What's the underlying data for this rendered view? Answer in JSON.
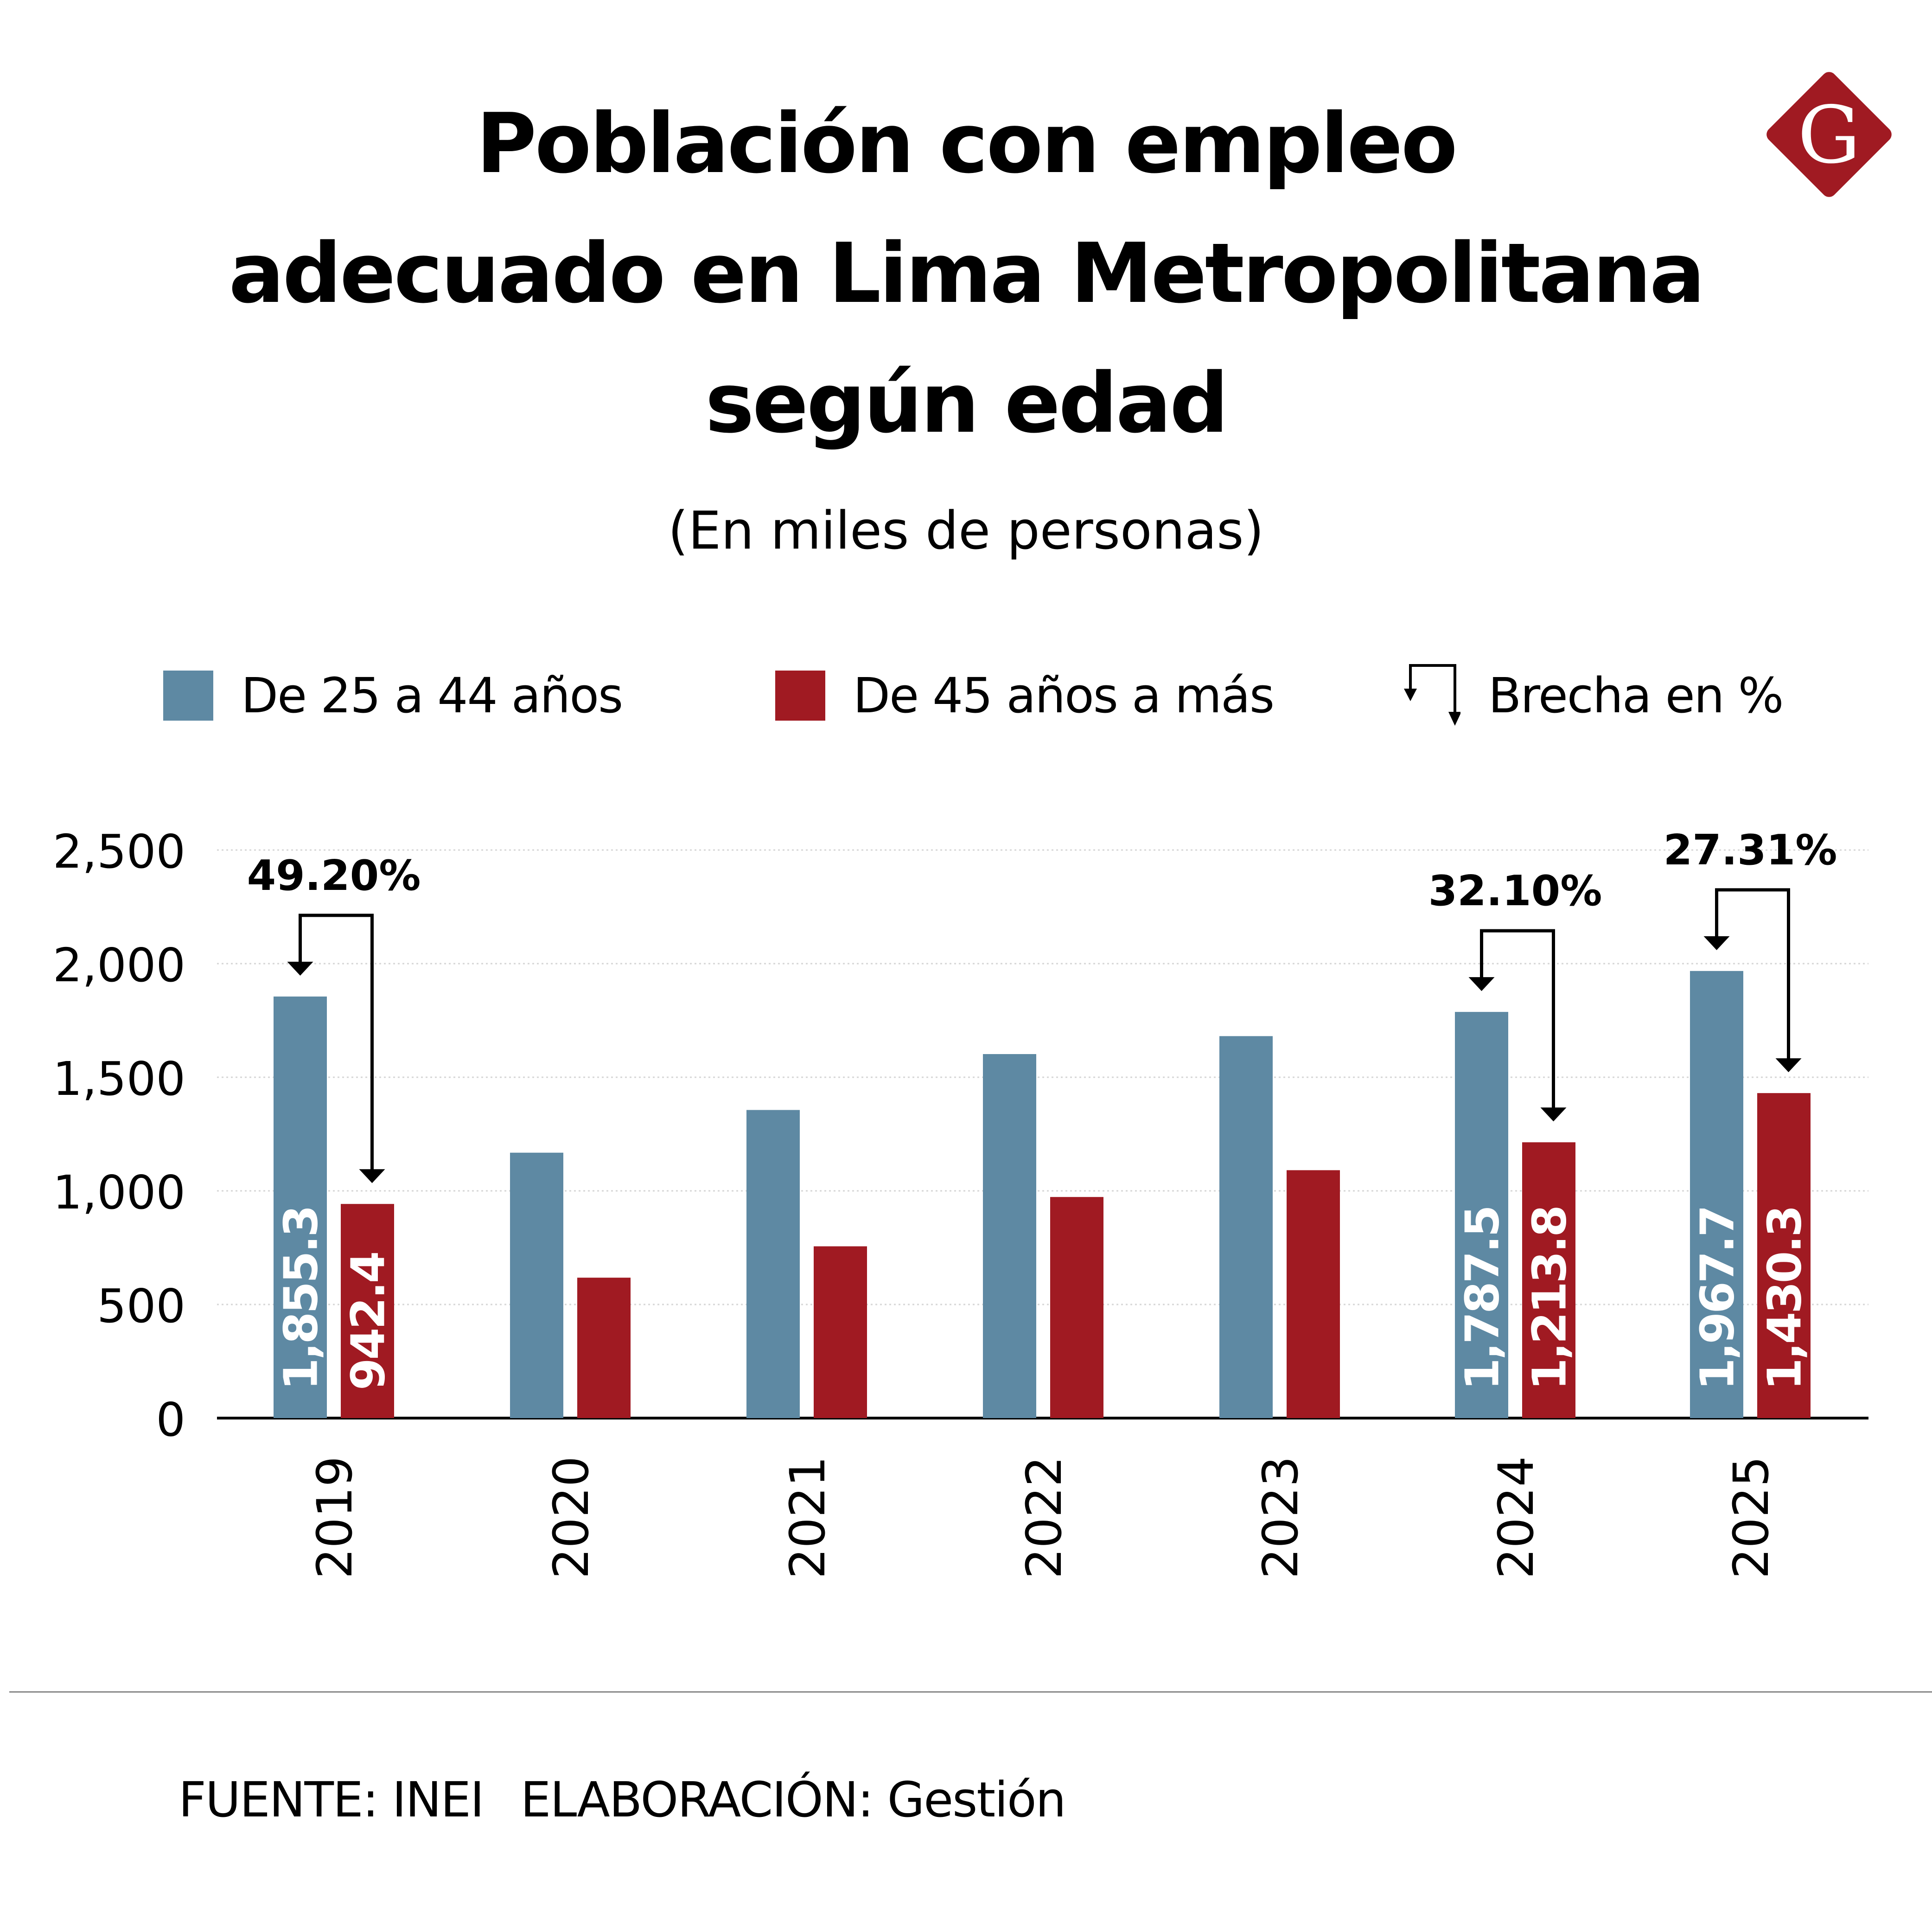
{
  "header": {
    "title_lines": [
      "Población con empleo",
      "adecuado en Lima Metropolitana",
      "según edad"
    ],
    "subtitle": "(En miles de personas)",
    "logo_letter": "G",
    "logo_color": "#a01a22"
  },
  "legend": {
    "items": [
      {
        "label": "De 25 a 44 años",
        "color": "#5e89a3",
        "icon": "blue-square"
      },
      {
        "label": "De 45 años a más",
        "color": "#a01a22",
        "icon": "red-square"
      },
      {
        "label": "Brecha en %",
        "icon": "gap-arrow-icon"
      }
    ]
  },
  "footer": {
    "source": "FUENTE: INEI",
    "elaboration": "ELABORACIÓN: Gestión"
  },
  "chart_data": {
    "type": "bar",
    "title": "Población con empleo adecuado en Lima Metropolitana según edad",
    "subtitle": "(En miles de personas)",
    "xlabel": "",
    "ylabel": "",
    "categories": [
      "2019",
      "2020",
      "2021",
      "2022",
      "2023",
      "2024",
      "2025"
    ],
    "series": [
      {
        "name": "De 25 a 44 años",
        "color": "#5e89a3",
        "values": [
          1855.3,
          1168,
          1356,
          1602,
          1681,
          1787.5,
          1967.7
        ],
        "labels": [
          "1,855.3",
          null,
          null,
          null,
          null,
          "1,787.5",
          "1,967.7"
        ]
      },
      {
        "name": "De 45 años a más",
        "color": "#a01a22",
        "values": [
          942.4,
          618,
          756,
          973,
          1091,
          1213.8,
          1430.3
        ],
        "labels": [
          "942.4",
          null,
          null,
          null,
          null,
          "1,213.8",
          "1,430.3"
        ]
      }
    ],
    "annotations": [
      {
        "category": "2019",
        "text": "49.20%",
        "type": "gap-arrow"
      },
      {
        "category": "2024",
        "text": "32.10%",
        "type": "gap-arrow"
      },
      {
        "category": "2025",
        "text": "27.31%",
        "type": "gap-arrow"
      }
    ],
    "yticks": [
      0,
      500,
      1000,
      1500,
      2000,
      2500
    ],
    "ytick_labels": [
      "0",
      "500",
      "1,000",
      "1,500",
      "2,000",
      "2,500"
    ],
    "ylim": [
      0,
      2500
    ],
    "grid": true,
    "legend_position": "top"
  }
}
